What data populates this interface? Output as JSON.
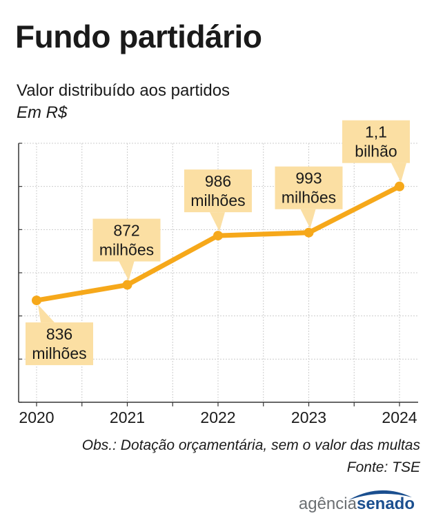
{
  "title": "Fundo partidário",
  "subtitle": "Valor distribuído aos partidos",
  "unit": "Em R$",
  "note": "Obs.: Dotação orçamentária, sem o valor das multas",
  "source": "Fonte: TSE",
  "logo": {
    "part1": "agência",
    "part2": "senado"
  },
  "colors": {
    "line": "#f6a81a",
    "label_bg": "#fbdfa3",
    "axis": "#333333",
    "grid": "#cccccc",
    "logo_blue": "#1b4f8f"
  },
  "chart_data": {
    "type": "line",
    "title": "Fundo partidário",
    "subtitle": "Valor distribuído aos partidos",
    "ylabel": "Em R$",
    "xlabel": "",
    "grid": true,
    "ylim": [
      600,
      1200
    ],
    "categories": [
      "2020",
      "2021",
      "2022",
      "2023",
      "2024"
    ],
    "series": [
      {
        "name": "Valor distribuído",
        "values": [
          836,
          872,
          986,
          993,
          1100
        ]
      }
    ],
    "data_labels": [
      [
        "836",
        "milhões"
      ],
      [
        "872",
        "milhões"
      ],
      [
        "986",
        "milhões"
      ],
      [
        "993",
        "milhões"
      ],
      [
        "1,1",
        "bilhão"
      ]
    ]
  }
}
